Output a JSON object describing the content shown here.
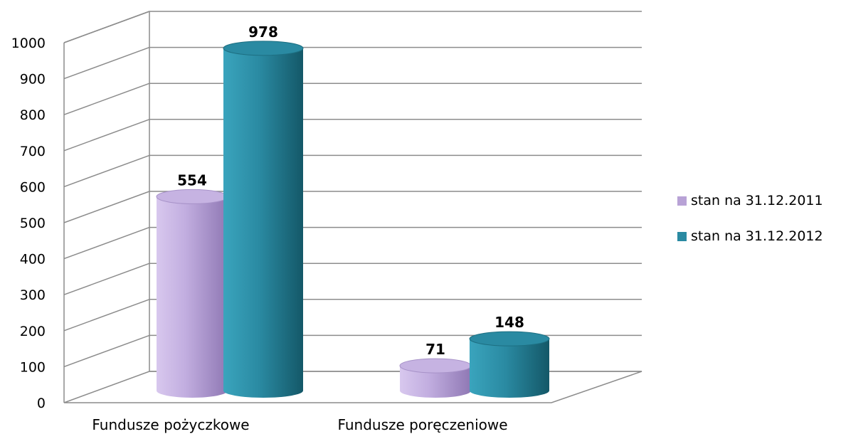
{
  "chart_data": {
    "type": "bar",
    "style": "3d-cylinder",
    "categories": [
      "Fundusze pożyczkowe",
      "Fundusze poręczeniowe"
    ],
    "series": [
      {
        "name": "stan na 31.12.2011",
        "values": [
          554,
          71
        ],
        "color": "#b8a2d6"
      },
      {
        "name": "stan na 31.12.2012",
        "values": [
          978,
          148
        ],
        "color": "#2a8aa2"
      }
    ],
    "ylim": [
      0,
      1000
    ],
    "yticks": [
      "0",
      "100",
      "200",
      "300",
      "400",
      "500",
      "600",
      "700",
      "800",
      "900",
      "1000"
    ],
    "grid": true,
    "legend_position": "right"
  }
}
